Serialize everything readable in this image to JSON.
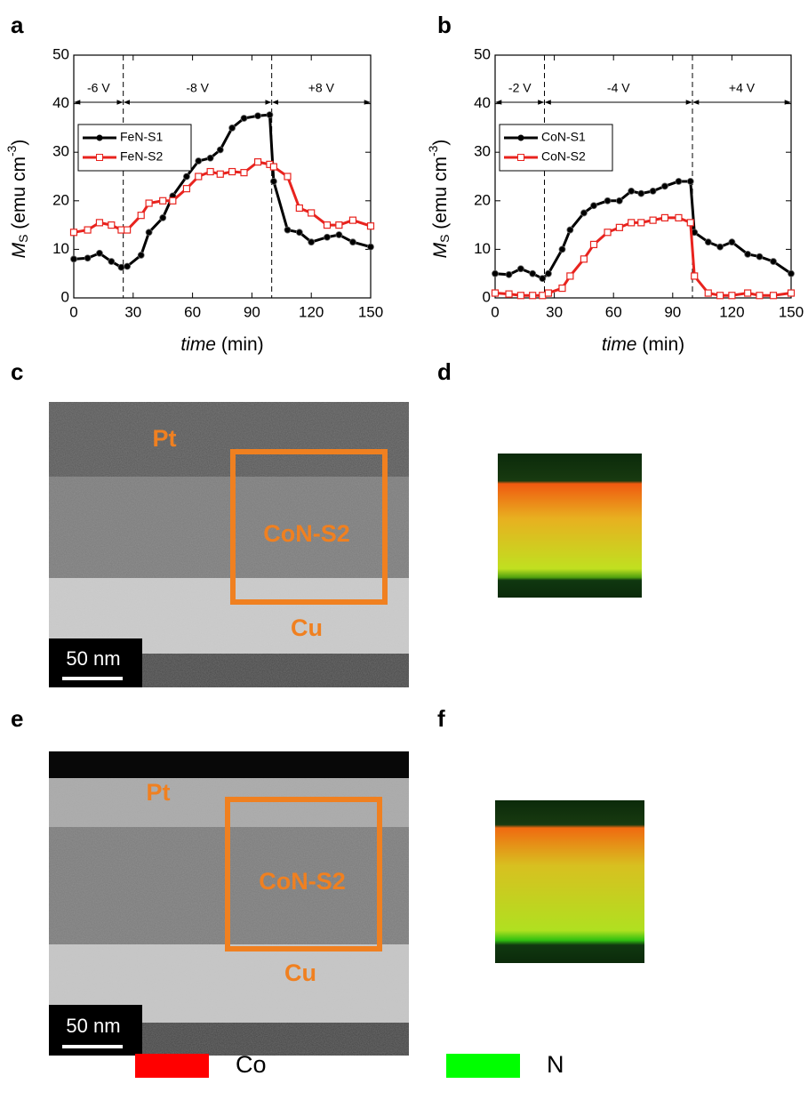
{
  "chart_data": [
    {
      "type": "line",
      "panel": "a",
      "xlabel": {
        "var": "time",
        "unit": " (min)"
      },
      "ylabel": {
        "symbol": "M",
        "sub": "S",
        "unit": " (emu cm",
        "sup": "-3",
        "close": ")"
      },
      "xlim": [
        0,
        150
      ],
      "xticks": [
        0,
        30,
        60,
        90,
        120,
        150
      ],
      "ylim": [
        0,
        50
      ],
      "yticks": [
        0,
        10,
        20,
        30,
        40,
        50
      ],
      "regions": [
        {
          "label": "-6 V",
          "start": 0,
          "end": 25
        },
        {
          "label": "-8 V",
          "start": 25,
          "end": 100
        },
        {
          "label": "+8 V",
          "start": 100,
          "end": 150
        }
      ],
      "x": [
        0,
        7,
        13,
        19,
        24,
        27,
        34,
        38,
        45,
        50,
        57,
        63,
        69,
        74,
        80,
        86,
        93,
        99,
        101,
        108,
        114,
        120,
        128,
        134,
        141,
        150
      ],
      "series": [
        {
          "name": "FeN-S1",
          "color": "#000000",
          "marker": "circle",
          "values": [
            8,
            8.2,
            9.2,
            7.5,
            6.3,
            6.5,
            8.8,
            13.5,
            16.5,
            21,
            25,
            28.2,
            28.8,
            30.5,
            35,
            37,
            37.5,
            37.7,
            24,
            14,
            13.5,
            11.5,
            12.5,
            13,
            11.5,
            10.5
          ]
        },
        {
          "name": "FeN-S2",
          "color": "#e8231e",
          "marker": "square",
          "values": [
            13.5,
            14,
            15.5,
            15,
            14,
            14,
            17,
            19.5,
            20,
            20,
            22.5,
            25,
            26,
            25.5,
            26,
            25.8,
            28,
            27.5,
            27,
            25,
            18.5,
            17.5,
            15,
            15,
            16,
            14.8
          ]
        }
      ]
    },
    {
      "type": "line",
      "panel": "b",
      "xlabel": {
        "var": "time",
        "unit": " (min)"
      },
      "ylabel": {
        "symbol": "M",
        "sub": "S",
        "unit": " (emu cm",
        "sup": "-3",
        "close": ")"
      },
      "xlim": [
        0,
        150
      ],
      "xticks": [
        0,
        30,
        60,
        90,
        120,
        150
      ],
      "ylim": [
        0,
        50
      ],
      "yticks": [
        0,
        10,
        20,
        30,
        40,
        50
      ],
      "regions": [
        {
          "label": "-2 V",
          "start": 0,
          "end": 25
        },
        {
          "label": "-4 V",
          "start": 25,
          "end": 100
        },
        {
          "label": "+4 V",
          "start": 100,
          "end": 150
        }
      ],
      "x": [
        0,
        7,
        13,
        19,
        24,
        27,
        34,
        38,
        45,
        50,
        57,
        63,
        69,
        74,
        80,
        86,
        93,
        99,
        101,
        108,
        114,
        120,
        128,
        134,
        141,
        150
      ],
      "series": [
        {
          "name": "CoN-S1",
          "color": "#000000",
          "marker": "circle",
          "values": [
            5,
            4.8,
            6,
            5,
            4,
            5,
            10,
            14,
            17.5,
            19,
            20,
            20,
            22,
            21.5,
            22,
            23,
            24,
            24,
            13.5,
            11.5,
            10.5,
            11.5,
            9,
            8.5,
            7.5,
            5
          ]
        },
        {
          "name": "CoN-S2",
          "color": "#e8231e",
          "marker": "square",
          "values": [
            1,
            0.8,
            0.5,
            0.5,
            0.5,
            1,
            2,
            4.5,
            8,
            11,
            13.5,
            14.5,
            15.5,
            15.5,
            16,
            16.5,
            16.5,
            15.5,
            4.5,
            1,
            0.5,
            0.5,
            1,
            0.5,
            0.5,
            1
          ]
        }
      ]
    }
  ],
  "figure": {
    "panels": [
      "c",
      "d",
      "e",
      "f"
    ],
    "images": [
      {
        "labels": [
          "Pt",
          "CoN-S2",
          "Cu"
        ],
        "scale_bar": "50 nm"
      },
      {
        "labels": [
          "Pt",
          "CoN-S2",
          "Cu"
        ],
        "scale_bar": "50 nm"
      }
    ],
    "map_legend": [
      {
        "name": "Co",
        "color": "#ff0000"
      },
      {
        "name": "N",
        "color": "#00ff00"
      }
    ]
  }
}
